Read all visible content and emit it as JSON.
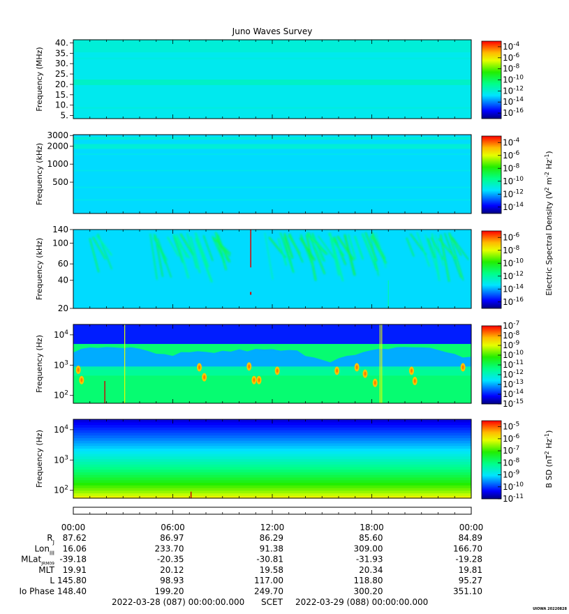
{
  "title": "Juno Waves Survey",
  "stamp": "UIOWA 20220828",
  "colorbar_labels": {
    "electric": {
      "prefix": "Electric Spectral Density (V",
      "sup1": "2",
      "mid": " m",
      "sup2": "-2",
      "mid2": " Hz",
      "sup3": "-1",
      "suffix": ")"
    },
    "magnetic": {
      "prefix": "B SD (nT",
      "sup1": "2",
      "mid": " Hz",
      "sup2": "-1",
      "suffix": ")"
    }
  },
  "colors": {
    "axis": "#000000",
    "cold": "#0000ff",
    "hot": "#ff0000"
  },
  "chart_data": [
    {
      "type": "heatmap",
      "name_label": "panel-1",
      "ylabel": "Frequency (MHz)",
      "yscale": "linear",
      "ylim": [
        3.5,
        41.5
      ],
      "yticks": [
        "40.",
        "35.",
        "30.",
        "25.",
        "20.",
        "15.",
        "10.",
        "5."
      ],
      "ytick_values": [
        40,
        35,
        30,
        25,
        20,
        15,
        10,
        5
      ],
      "colorbar": {
        "ticks": [
          "10-4",
          "10-6",
          "10-8",
          "10-10",
          "10-12",
          "10-14",
          "10-16"
        ],
        "exponents": [
          "-4",
          "-6",
          "-8",
          "-10",
          "-12",
          "-14",
          "-16"
        ],
        "min_exp": -17,
        "max_exp": -3
      },
      "description_values": {
        "background_exp": -12.5,
        "band_center_mhz": 21,
        "band_exp": -11.8
      }
    },
    {
      "type": "heatmap",
      "name_label": "panel-2",
      "ylabel": "Frequency (kHz)",
      "yscale": "log",
      "ylim": [
        150,
        3100
      ],
      "yticks": [
        "3000",
        "2000",
        "1000",
        "500"
      ],
      "ytick_values": [
        3000,
        2000,
        1000,
        500
      ],
      "colorbar": {
        "ticks": [
          "10-4",
          "10-6",
          "10-8",
          "10-10",
          "10-12",
          "10-14"
        ],
        "exponents": [
          "-4",
          "-6",
          "-8",
          "-10",
          "-12",
          "-14"
        ],
        "min_exp": -15,
        "max_exp": -3
      },
      "description_values": {
        "background_exp": -11.5,
        "band_center_khz": 2000,
        "band_exp": -10.8
      }
    },
    {
      "type": "heatmap",
      "name_label": "panel-3",
      "ylabel": "Frequency (kHz)",
      "yscale": "log",
      "ylim": [
        20,
        140
      ],
      "yticks": [
        "140",
        "100",
        "60",
        "40",
        "20"
      ],
      "ytick_values": [
        140,
        100,
        60,
        40,
        20
      ],
      "colorbar": {
        "ticks": [
          "10-6",
          "10-8",
          "10-10",
          "10-12",
          "10-14",
          "10-16"
        ],
        "exponents": [
          "-6",
          "-8",
          "-10",
          "-12",
          "-14",
          "-16"
        ],
        "min_exp": -17,
        "max_exp": -5
      },
      "description_values": {
        "background_exp": -13.5,
        "spike_hour": 10.7
      }
    },
    {
      "type": "heatmap",
      "name_label": "panel-4",
      "ylabel": "Frequency (Hz)",
      "yscale": "log",
      "ylim": [
        55,
        22000
      ],
      "yticks": [
        "10^4",
        "10^3",
        "10^2"
      ],
      "ytick_values": [
        10000,
        1000,
        100
      ],
      "colorbar": {
        "ticks": [
          "10-7",
          "10-8",
          "10-9",
          "10-10",
          "10-11",
          "10-12",
          "10-13",
          "10-14",
          "10-15"
        ],
        "exponents": [
          "-7",
          "-8",
          "-9",
          "-10",
          "-11",
          "-12",
          "-13",
          "-14",
          "-15"
        ],
        "min_exp": -15,
        "max_exp": -7
      },
      "description_values": {
        "upper_exp": -14,
        "lower_exp": -11
      }
    },
    {
      "type": "heatmap",
      "name_label": "panel-5",
      "ylabel": "Frequency (Hz)",
      "yscale": "log",
      "ylim": [
        55,
        22000
      ],
      "yticks": [
        "10^4",
        "10^3",
        "10^2"
      ],
      "ytick_values": [
        10000,
        1000,
        100
      ],
      "colorbar": {
        "ticks": [
          "10-5",
          "10-6",
          "10-7",
          "10-8",
          "10-9",
          "10-10",
          "10-11"
        ],
        "exponents": [
          "-5",
          "-6",
          "-7",
          "-8",
          "-9",
          "-10",
          "-11"
        ],
        "min_exp": -11,
        "max_exp": -4.5
      },
      "description_values": {
        "top_exp": -10.5,
        "bottom_exp": -6
      }
    }
  ],
  "x_axis": {
    "hours": [
      0,
      6,
      12,
      18,
      24
    ],
    "tick_labels": [
      "00:00",
      "06:00",
      "12:00",
      "18:00",
      "00:00"
    ],
    "rows": [
      {
        "label": "R",
        "sub": "J",
        "values": [
          "87.62",
          "86.97",
          "86.29",
          "85.60",
          "84.89"
        ]
      },
      {
        "label": "Lon",
        "sub": "III",
        "values": [
          "16.06",
          "233.70",
          "91.38",
          "309.00",
          "166.70"
        ]
      },
      {
        "label": "MLat",
        "sub": "JRM09",
        "values": [
          "-39.18",
          "-20.35",
          "-30.81",
          "-31.93",
          "-19.28"
        ]
      },
      {
        "label": "MLT",
        "sub": "",
        "values": [
          "19.91",
          "20.12",
          "19.58",
          "20.34",
          "19.81"
        ]
      },
      {
        "label": "L",
        "sub": "",
        "values": [
          "145.80",
          "98.93",
          "117.00",
          "118.80",
          "95.27"
        ]
      },
      {
        "label": "Io Phase",
        "sub": "",
        "values": [
          "148.40",
          "199.20",
          "249.70",
          "300.20",
          "351.10"
        ]
      }
    ],
    "start": "2022-03-28 (087) 00:00:00.000",
    "scet": "SCET",
    "end": "2022-03-29 (088) 00:00:00.000"
  }
}
